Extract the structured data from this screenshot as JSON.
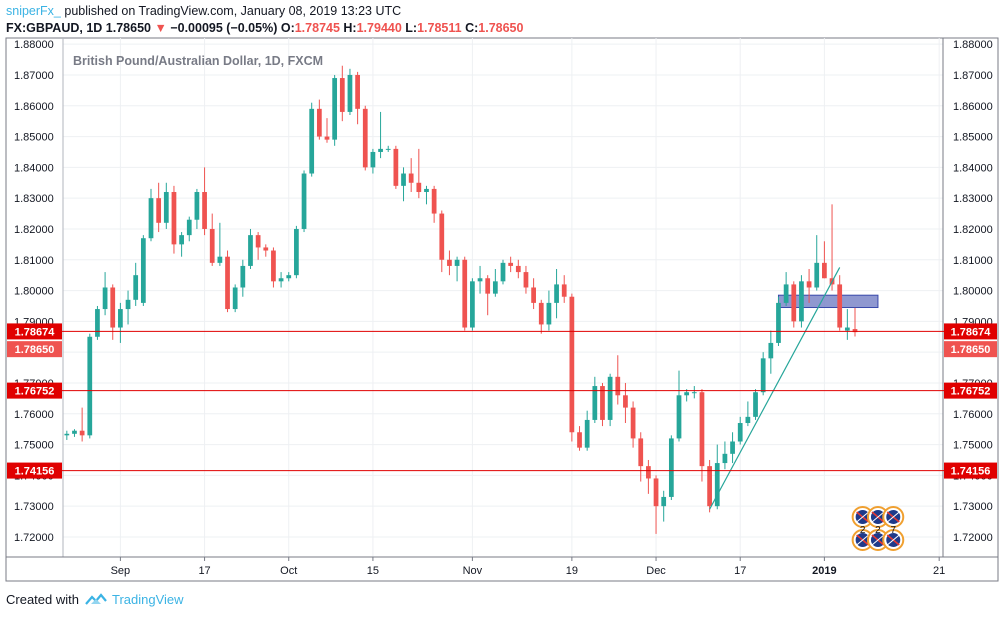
{
  "header": {
    "author": "sniperFx_",
    "published_text": "published on TradingView.com, January 08, 2019 13:23 UTC",
    "symbol": "FX:GBPAUD, 1D",
    "last": "1.78650",
    "change_arrow": "▼",
    "change": "−0.00095 (−0.05%)",
    "o_label": "O:",
    "o_value": "1.78745",
    "h_label": "H:",
    "h_value": "1.79440",
    "l_label": "L:",
    "l_value": "1.78511",
    "c_label": "C:",
    "c_value": "1.78650"
  },
  "footer": {
    "created_with": "Created with",
    "brand": "TradingView"
  },
  "colors": {
    "up": "#26a69a",
    "down": "#ef5350",
    "line": "#e00000",
    "trend": "#26a69a",
    "zone": "#7b86c8"
  },
  "chart_data": {
    "type": "candlestick",
    "title": "British Pound/Australian Dollar, 1D, FXCM",
    "ylim": [
      1.7135,
      1.882
    ],
    "y_ticks": [
      "1.72000",
      "1.73000",
      "1.74000",
      "1.75000",
      "1.76000",
      "1.77000",
      "1.78000",
      "1.79000",
      "1.80000",
      "1.81000",
      "1.82000",
      "1.83000",
      "1.84000",
      "1.85000",
      "1.86000",
      "1.87000",
      "1.88000"
    ],
    "x_ticks": [
      {
        "label": "Sep",
        "bar": 7
      },
      {
        "label": "17",
        "bar": 18
      },
      {
        "label": "Oct",
        "bar": 29
      },
      {
        "label": "15",
        "bar": 40
      },
      {
        "label": "Nov",
        "bar": 53
      },
      {
        "label": "19",
        "bar": 66
      },
      {
        "label": "Dec",
        "bar": 77
      },
      {
        "label": "17",
        "bar": 88
      },
      {
        "label": "2019",
        "bar": 99
      },
      {
        "label": "21",
        "bar": 114
      }
    ],
    "bars_visible": 115,
    "candles": [
      [
        1.753,
        1.7545,
        1.7515,
        1.7535
      ],
      [
        1.7535,
        1.755,
        1.7525,
        1.7545
      ],
      [
        1.7545,
        1.762,
        1.751,
        1.753
      ],
      [
        1.753,
        1.786,
        1.752,
        1.785
      ],
      [
        1.785,
        1.795,
        1.784,
        1.794
      ],
      [
        1.794,
        1.806,
        1.792,
        1.801
      ],
      [
        1.801,
        1.802,
        1.784,
        1.788
      ],
      [
        1.788,
        1.796,
        1.783,
        1.794
      ],
      [
        1.794,
        1.8,
        1.789,
        1.797
      ],
      [
        1.797,
        1.809,
        1.795,
        1.805
      ],
      [
        1.796,
        1.818,
        1.795,
        1.817
      ],
      [
        1.817,
        1.833,
        1.816,
        1.83
      ],
      [
        1.83,
        1.835,
        1.819,
        1.822
      ],
      [
        1.822,
        1.835,
        1.82,
        1.832
      ],
      [
        1.832,
        1.834,
        1.812,
        1.815
      ],
      [
        1.815,
        1.819,
        1.811,
        1.818
      ],
      [
        1.818,
        1.824,
        1.816,
        1.823
      ],
      [
        1.823,
        1.833,
        1.82,
        1.832
      ],
      [
        1.832,
        1.84,
        1.818,
        1.82
      ],
      [
        1.82,
        1.825,
        1.808,
        1.809
      ],
      [
        1.809,
        1.822,
        1.808,
        1.811
      ],
      [
        1.811,
        1.813,
        1.793,
        1.794
      ],
      [
        1.794,
        1.802,
        1.793,
        1.801
      ],
      [
        1.801,
        1.81,
        1.798,
        1.808
      ],
      [
        1.808,
        1.82,
        1.807,
        1.818
      ],
      [
        1.818,
        1.819,
        1.81,
        1.814
      ],
      [
        1.814,
        1.815,
        1.811,
        1.813
      ],
      [
        1.813,
        1.814,
        1.801,
        1.803
      ],
      [
        1.803,
        1.806,
        1.801,
        1.804
      ],
      [
        1.804,
        1.806,
        1.803,
        1.805
      ],
      [
        1.805,
        1.821,
        1.804,
        1.82
      ],
      [
        1.82,
        1.839,
        1.819,
        1.838
      ],
      [
        1.838,
        1.861,
        1.837,
        1.859
      ],
      [
        1.859,
        1.862,
        1.849,
        1.85
      ],
      [
        1.85,
        1.856,
        1.848,
        1.849
      ],
      [
        1.849,
        1.87,
        1.847,
        1.869
      ],
      [
        1.869,
        1.873,
        1.855,
        1.858
      ],
      [
        1.858,
        1.872,
        1.857,
        1.87
      ],
      [
        1.87,
        1.871,
        1.854,
        1.859
      ],
      [
        1.859,
        1.86,
        1.839,
        1.84
      ],
      [
        1.84,
        1.846,
        1.838,
        1.845
      ],
      [
        1.845,
        1.858,
        1.843,
        1.846
      ],
      [
        1.846,
        1.847,
        1.845,
        1.846
      ],
      [
        1.846,
        1.847,
        1.833,
        1.834
      ],
      [
        1.834,
        1.84,
        1.829,
        1.838
      ],
      [
        1.838,
        1.843,
        1.832,
        1.835
      ],
      [
        1.835,
        1.846,
        1.83,
        1.832
      ],
      [
        1.832,
        1.834,
        1.828,
        1.833
      ],
      [
        1.833,
        1.834,
        1.822,
        1.825
      ],
      [
        1.825,
        1.826,
        1.806,
        1.81
      ],
      [
        1.81,
        1.813,
        1.805,
        1.808
      ],
      [
        1.808,
        1.811,
        1.803,
        1.81
      ],
      [
        1.81,
        1.811,
        1.787,
        1.788
      ],
      [
        1.788,
        1.804,
        1.787,
        1.803
      ],
      [
        1.803,
        1.808,
        1.799,
        1.804
      ],
      [
        1.804,
        1.805,
        1.792,
        1.799
      ],
      [
        1.799,
        1.807,
        1.798,
        1.803
      ],
      [
        1.803,
        1.81,
        1.802,
        1.809
      ],
      [
        1.809,
        1.811,
        1.806,
        1.808
      ],
      [
        1.808,
        1.81,
        1.804,
        1.806
      ],
      [
        1.806,
        1.808,
        1.799,
        1.801
      ],
      [
        1.801,
        1.804,
        1.794,
        1.796
      ],
      [
        1.796,
        1.797,
        1.786,
        1.789
      ],
      [
        1.789,
        1.8,
        1.787,
        1.796
      ],
      [
        1.796,
        1.807,
        1.791,
        1.802
      ],
      [
        1.802,
        1.805,
        1.796,
        1.798
      ],
      [
        1.798,
        1.799,
        1.751,
        1.754
      ],
      [
        1.754,
        1.756,
        1.748,
        1.749
      ],
      [
        1.749,
        1.761,
        1.748,
        1.758
      ],
      [
        1.758,
        1.772,
        1.757,
        1.769
      ],
      [
        1.769,
        1.77,
        1.756,
        1.758
      ],
      [
        1.758,
        1.773,
        1.756,
        1.772
      ],
      [
        1.772,
        1.779,
        1.763,
        1.766
      ],
      [
        1.766,
        1.77,
        1.757,
        1.762
      ],
      [
        1.762,
        1.764,
        1.749,
        1.752
      ],
      [
        1.752,
        1.754,
        1.738,
        1.743
      ],
      [
        1.743,
        1.745,
        1.734,
        1.739
      ],
      [
        1.739,
        1.74,
        1.721,
        1.73
      ],
      [
        1.73,
        1.735,
        1.725,
        1.733
      ],
      [
        1.733,
        1.753,
        1.732,
        1.752
      ],
      [
        1.752,
        1.774,
        1.751,
        1.766
      ],
      [
        1.766,
        1.768,
        1.764,
        1.767
      ],
      [
        1.767,
        1.769,
        1.765,
        1.767
      ],
      [
        1.767,
        1.768,
        1.738,
        1.743
      ],
      [
        1.743,
        1.745,
        1.728,
        1.73
      ],
      [
        1.73,
        1.75,
        1.729,
        1.744
      ],
      [
        1.744,
        1.751,
        1.742,
        1.747
      ],
      [
        1.747,
        1.754,
        1.744,
        1.751
      ],
      [
        1.751,
        1.759,
        1.75,
        1.757
      ],
      [
        1.757,
        1.764,
        1.756,
        1.759
      ],
      [
        1.759,
        1.768,
        1.758,
        1.767
      ],
      [
        1.767,
        1.78,
        1.766,
        1.778
      ],
      [
        1.778,
        1.787,
        1.773,
        1.783
      ],
      [
        1.783,
        1.798,
        1.782,
        1.796
      ],
      [
        1.796,
        1.806,
        1.795,
        1.802
      ],
      [
        1.802,
        1.803,
        1.788,
        1.79
      ],
      [
        1.79,
        1.805,
        1.788,
        1.803
      ],
      [
        1.803,
        1.807,
        1.796,
        1.801
      ],
      [
        1.801,
        1.818,
        1.8,
        1.809
      ],
      [
        1.809,
        1.816,
        1.804,
        1.804
      ],
      [
        1.804,
        1.828,
        1.8,
        1.802
      ],
      [
        1.802,
        1.805,
        1.787,
        1.788
      ],
      [
        1.787,
        1.794,
        1.784,
        1.788
      ],
      [
        1.7875,
        1.7944,
        1.7851,
        1.7865
      ]
    ],
    "horizontal_levels": [
      {
        "value": 1.78674,
        "label": "1.78674"
      },
      {
        "value": 1.76752,
        "label": "1.76752"
      },
      {
        "value": 1.74156,
        "label": "1.74156"
      }
    ],
    "last_price": {
      "value": 1.7865,
      "label": "1.78650"
    },
    "trendline": {
      "from": {
        "bar": 84,
        "price": 1.729
      },
      "to": {
        "bar": 101,
        "price": 1.8075
      }
    },
    "zone": {
      "bar_from": 93,
      "bar_to": 106,
      "price_low": 1.7945,
      "price_high": 1.7985
    },
    "events": [
      {
        "bar": 104,
        "label": "2"
      },
      {
        "bar": 106,
        "label": "2"
      },
      {
        "bar": 108,
        "label": "7"
      }
    ],
    "legend": "none",
    "grid": true
  }
}
